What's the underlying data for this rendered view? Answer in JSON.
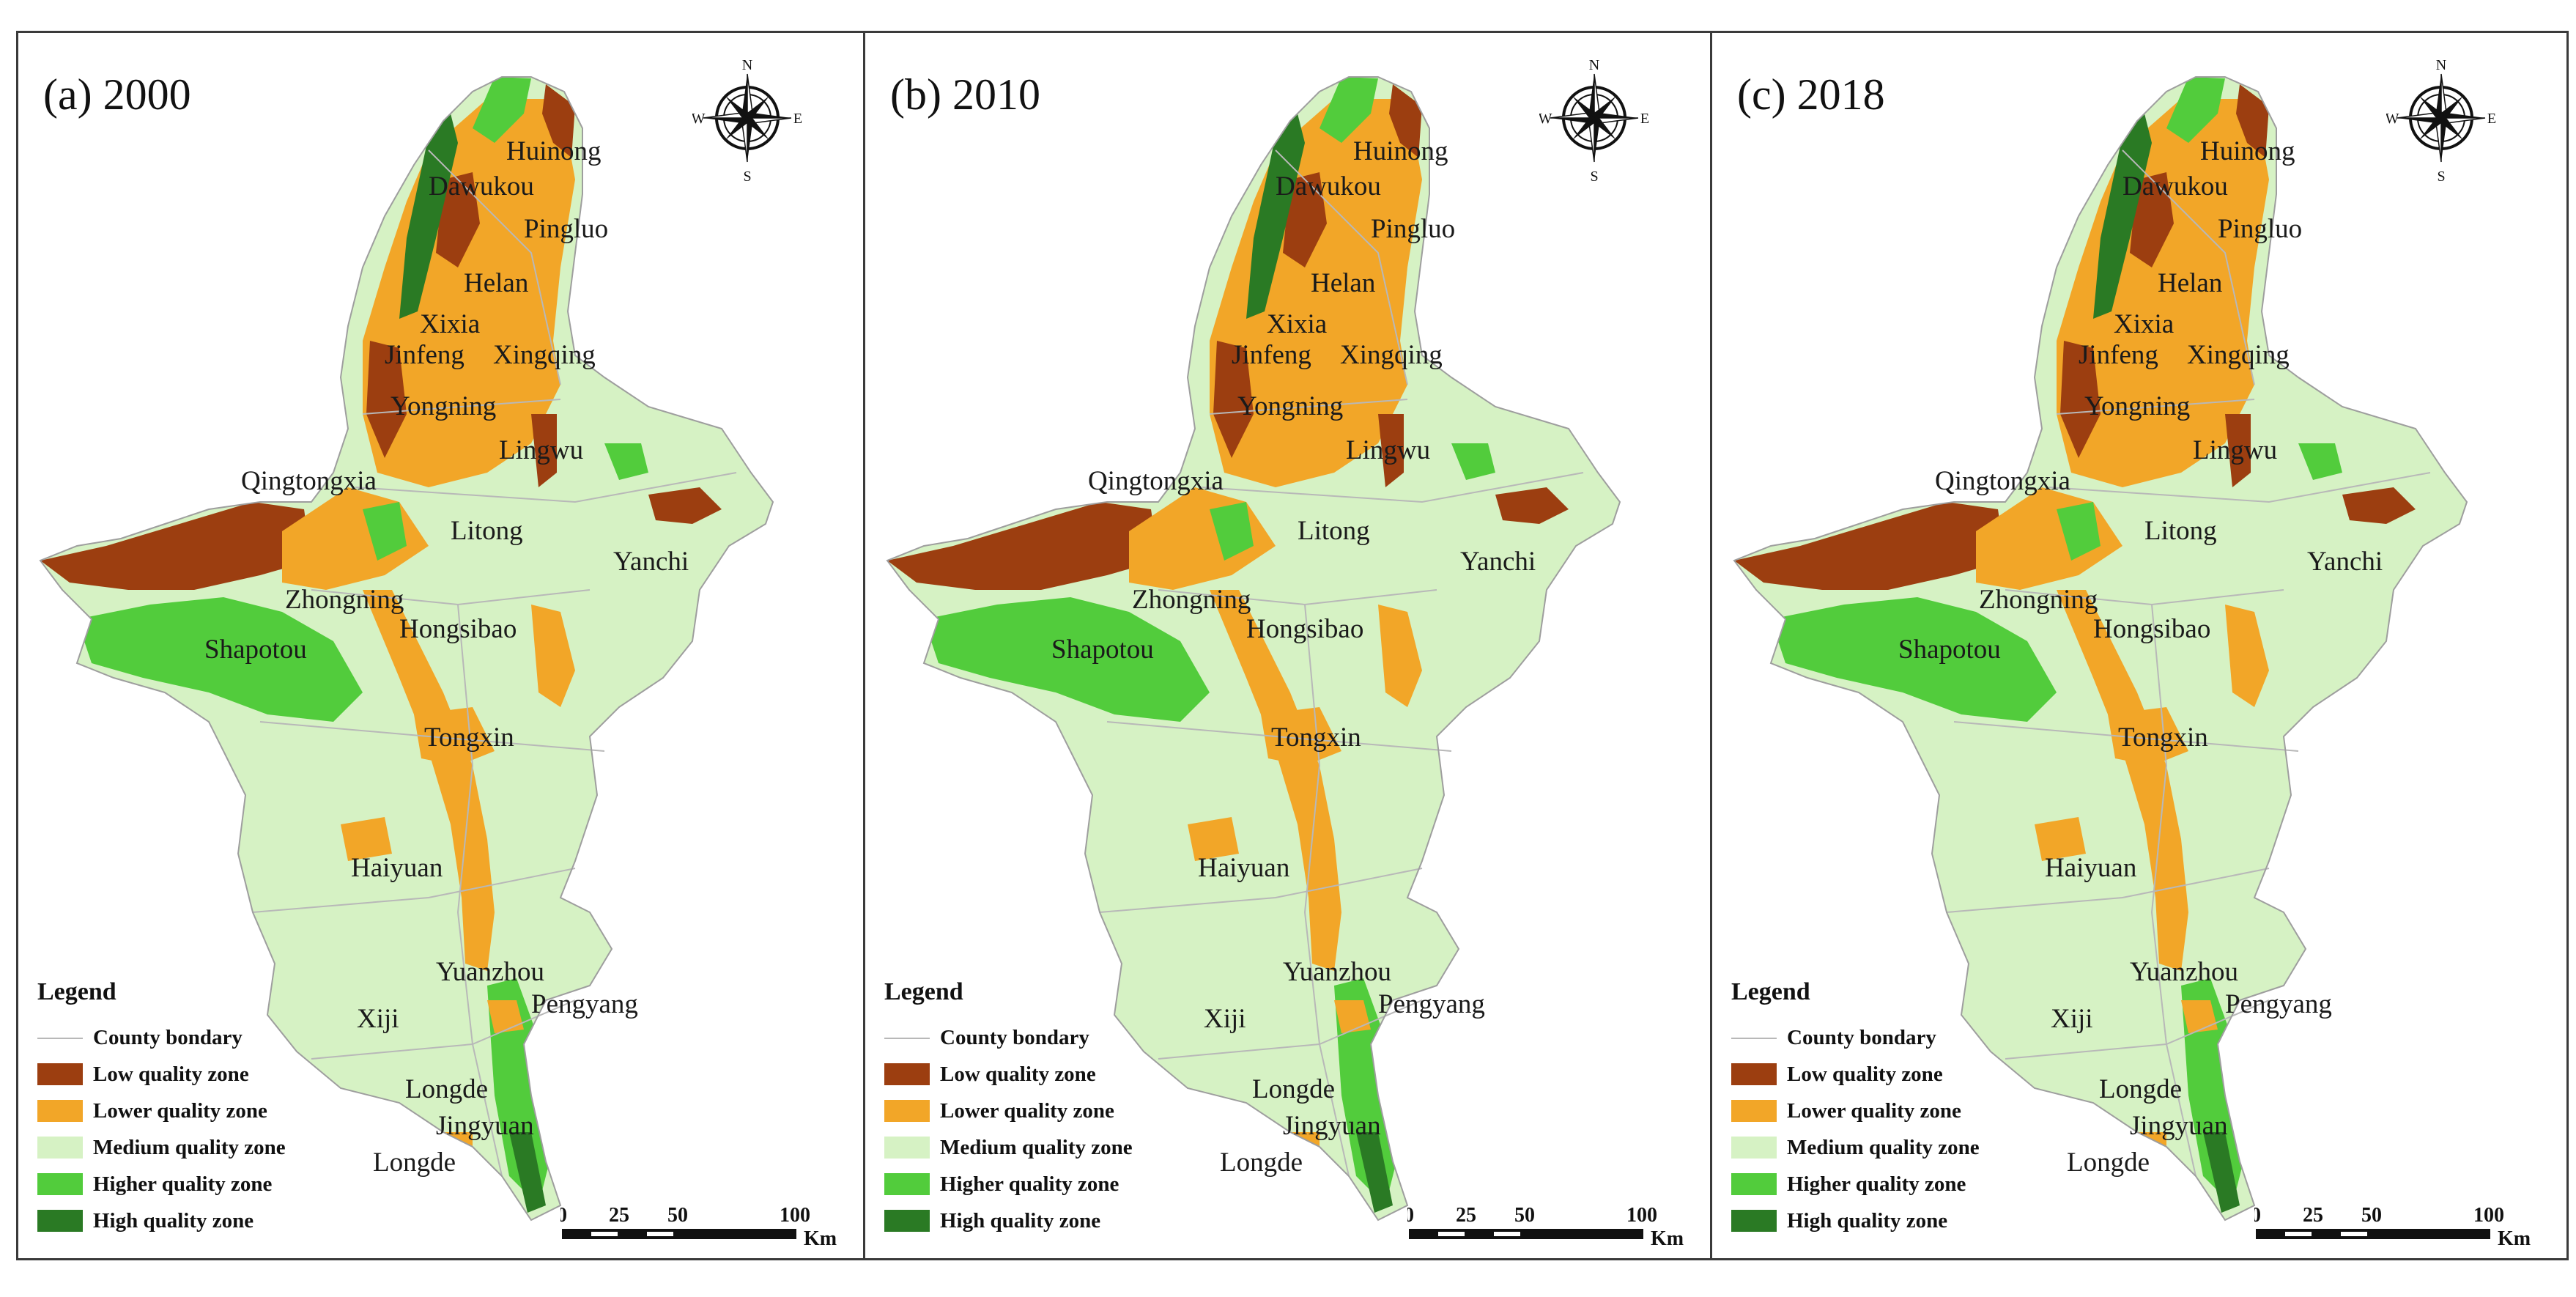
{
  "colors": {
    "low": "#9c3e10",
    "lower": "#f2a628",
    "medium": "#d6f2c4",
    "higher": "#52cc3c",
    "high": "#2a7a24",
    "boundary": "#b8b8b8"
  },
  "legend": {
    "title": "Legend",
    "items": [
      {
        "label": "County bondary",
        "kind": "line"
      },
      {
        "label": "Low quality zone",
        "kind": "low"
      },
      {
        "label": "Lower quality zone",
        "kind": "lower"
      },
      {
        "label": "Medium quality zone",
        "kind": "medium"
      },
      {
        "label": "Higher quality zone",
        "kind": "higher"
      },
      {
        "label": "High quality zone",
        "kind": "high"
      }
    ]
  },
  "compass": {
    "n": "N",
    "s": "S",
    "e": "E",
    "w": "W"
  },
  "scale": {
    "ticks": [
      "0",
      "25",
      "50",
      "100"
    ],
    "unit": "Km"
  },
  "panels": [
    {
      "title": "(a) 2000",
      "places": [
        {
          "name": "Huinong"
        },
        {
          "name": "Dawukou"
        },
        {
          "name": "Pingluo"
        },
        {
          "name": "Helan"
        },
        {
          "name": "Xixia"
        },
        {
          "name": "Jinfeng"
        },
        {
          "name": "Xingqing"
        },
        {
          "name": "Yongning"
        },
        {
          "name": "Lingwu"
        },
        {
          "name": "Qingtongxia"
        },
        {
          "name": "Litong"
        },
        {
          "name": "Yanchi"
        },
        {
          "name": "Zhongning"
        },
        {
          "name": "Hongsibao"
        },
        {
          "name": "Shapotou"
        },
        {
          "name": "Tongxin"
        },
        {
          "name": "Haiyuan"
        },
        {
          "name": "Yuanzhou"
        },
        {
          "name": "Pengyang"
        },
        {
          "name": "Xiji"
        },
        {
          "name": "Longde"
        },
        {
          "name": "Jingyuan"
        },
        {
          "name": "Longde"
        }
      ]
    },
    {
      "title": "(b) 2010",
      "places": [
        {
          "name": "Huinong"
        },
        {
          "name": "Dawukou"
        },
        {
          "name": "Pingluo"
        },
        {
          "name": "Helan"
        },
        {
          "name": "Xixia"
        },
        {
          "name": "Jinfeng"
        },
        {
          "name": "Xingqing"
        },
        {
          "name": "Yongning"
        },
        {
          "name": "Lingwu"
        },
        {
          "name": "Qingtongxia"
        },
        {
          "name": "Litong"
        },
        {
          "name": "Yanchi"
        },
        {
          "name": "Zhongning"
        },
        {
          "name": "Hongsibao"
        },
        {
          "name": "Shapotou"
        },
        {
          "name": "Tongxin"
        },
        {
          "name": "Haiyuan"
        },
        {
          "name": "Yuanzhou"
        },
        {
          "name": "Pengyang"
        },
        {
          "name": "Xiji"
        },
        {
          "name": "Longde"
        },
        {
          "name": "Jingyuan"
        },
        {
          "name": "Longde"
        }
      ]
    },
    {
      "title": "(c) 2018",
      "places": [
        {
          "name": "Huinong"
        },
        {
          "name": "Dawukou"
        },
        {
          "name": "Pingluo"
        },
        {
          "name": "Helan"
        },
        {
          "name": "Xixia"
        },
        {
          "name": "Jinfeng"
        },
        {
          "name": "Xingqing"
        },
        {
          "name": "Yongning"
        },
        {
          "name": "Lingwu"
        },
        {
          "name": "Qingtongxia"
        },
        {
          "name": "Litong"
        },
        {
          "name": "Yanchi"
        },
        {
          "name": "Zhongning"
        },
        {
          "name": "Hongsibao"
        },
        {
          "name": "Shapotou"
        },
        {
          "name": "Tongxin"
        },
        {
          "name": "Haiyuan"
        },
        {
          "name": "Yuanzhou"
        },
        {
          "name": "Pengyang"
        },
        {
          "name": "Xiji"
        },
        {
          "name": "Longde"
        },
        {
          "name": "Jingyuan"
        },
        {
          "name": "Longde"
        }
      ]
    }
  ]
}
